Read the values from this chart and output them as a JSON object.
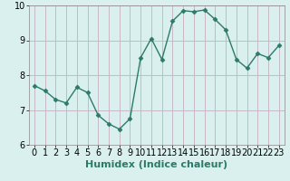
{
  "x": [
    0,
    1,
    2,
    3,
    4,
    5,
    6,
    7,
    8,
    9,
    10,
    11,
    12,
    13,
    14,
    15,
    16,
    17,
    18,
    19,
    20,
    21,
    22,
    23
  ],
  "y": [
    7.7,
    7.55,
    7.3,
    7.2,
    7.65,
    7.5,
    6.85,
    6.6,
    6.45,
    6.75,
    8.5,
    9.05,
    8.45,
    9.55,
    9.85,
    9.82,
    9.87,
    9.6,
    9.3,
    8.45,
    8.2,
    8.62,
    8.5,
    8.85
  ],
  "xlabel": "Humidex (Indice chaleur)",
  "ylim": [
    6,
    10
  ],
  "xlim_min": -0.5,
  "xlim_max": 23.5,
  "yticks": [
    6,
    7,
    8,
    9,
    10
  ],
  "xticks": [
    0,
    1,
    2,
    3,
    4,
    5,
    6,
    7,
    8,
    9,
    10,
    11,
    12,
    13,
    14,
    15,
    16,
    17,
    18,
    19,
    20,
    21,
    22,
    23
  ],
  "line_color": "#2d7a6a",
  "marker": "D",
  "marker_size": 2.5,
  "bg_color": "#daf0ee",
  "grid_color_major": "#c8b8c8",
  "grid_color_minor": "#ddd0dd",
  "xlabel_fontsize": 8,
  "tick_fontsize": 7,
  "line_width": 1.0,
  "border_color": "#888888"
}
